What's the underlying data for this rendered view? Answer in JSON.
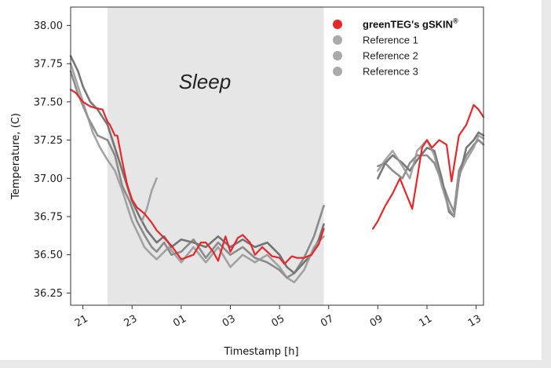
{
  "chart_data": {
    "type": "line",
    "title": "",
    "xlabel": "Timestamp [h]",
    "ylabel": "Temperature, (C)",
    "xlim": [
      20.5,
      37.3
    ],
    "ylim": [
      36.17,
      38.12
    ],
    "x_ticks": [
      {
        "value": 21,
        "label": "21"
      },
      {
        "value": 23,
        "label": "23"
      },
      {
        "value": 25,
        "label": "01"
      },
      {
        "value": 27,
        "label": "03"
      },
      {
        "value": 29,
        "label": "05"
      },
      {
        "value": 31,
        "label": "07"
      },
      {
        "value": 33,
        "label": "09"
      },
      {
        "value": 35,
        "label": "11"
      },
      {
        "value": 37,
        "label": "13"
      }
    ],
    "y_ticks": [
      {
        "value": 36.25,
        "label": "36.25"
      },
      {
        "value": 36.5,
        "label": "36.50"
      },
      {
        "value": 36.75,
        "label": "36.75"
      },
      {
        "value": 37.0,
        "label": "37.00"
      },
      {
        "value": 37.25,
        "label": "37.25"
      },
      {
        "value": 37.5,
        "label": "37.50"
      },
      {
        "value": 37.75,
        "label": "37.75"
      },
      {
        "value": 38.0,
        "label": "38.00"
      }
    ],
    "shaded_region": {
      "x_start": 22.0,
      "x_end": 30.8,
      "label": "Sleep",
      "color": "#e6e6e6"
    },
    "legend": {
      "placement": "top-right",
      "entries": [
        {
          "name": "greenTEG's gSKIN",
          "superscript": "®",
          "color": "#e8272b"
        },
        {
          "name": "Reference 1",
          "color": "#aaaaaa"
        },
        {
          "name": "Reference 2",
          "color": "#aaaaaa"
        },
        {
          "name": "Reference 3",
          "color": "#aaaaaa"
        }
      ]
    },
    "series": [
      {
        "name": "greenTEG's gSKIN",
        "color": "#e8272b",
        "segments": [
          {
            "x": [
              20.5,
              20.7,
              21.0,
              21.3,
              21.5,
              21.8,
              21.9,
              22.0,
              22.1,
              22.3,
              22.4,
              22.6,
              22.8,
              23.0,
              23.2,
              23.5,
              23.8,
              24.0,
              24.3,
              24.6,
              25.0,
              25.5,
              25.8,
              26.0,
              26.3,
              26.5,
              26.8,
              27.0,
              27.3,
              27.5,
              27.8,
              28.0,
              28.3,
              28.5,
              28.7,
              29.0,
              29.2,
              29.5,
              29.7,
              30.0,
              30.3,
              30.6,
              30.8
            ],
            "y": [
              37.58,
              37.56,
              37.5,
              37.47,
              37.46,
              37.45,
              37.41,
              37.37,
              37.35,
              37.28,
              37.28,
              37.11,
              36.96,
              36.86,
              36.81,
              36.77,
              36.71,
              36.66,
              36.61,
              36.56,
              36.47,
              36.5,
              36.58,
              36.58,
              36.52,
              36.46,
              36.62,
              36.52,
              36.61,
              36.63,
              36.58,
              36.5,
              36.55,
              36.52,
              36.49,
              36.48,
              36.44,
              36.49,
              36.48,
              36.48,
              36.5,
              36.57,
              36.67
            ]
          },
          {
            "x": [
              32.8,
              33.0,
              33.3,
              33.6,
              33.9,
              34.2,
              34.4,
              34.6,
              34.8,
              35.0,
              35.2,
              35.5,
              35.8,
              36.0,
              36.3,
              36.6,
              36.9,
              37.1,
              37.3
            ],
            "y": [
              36.67,
              36.72,
              36.82,
              36.9,
              37.0,
              36.88,
              36.8,
              37.0,
              37.2,
              37.25,
              37.2,
              37.25,
              37.22,
              36.98,
              37.28,
              37.35,
              37.48,
              37.45,
              37.4
            ]
          }
        ]
      },
      {
        "name": "Reference 1",
        "color": "#5f5f5f",
        "segments": [
          {
            "x": [
              20.5,
              20.8,
              21.0,
              21.3,
              21.6,
              22.0,
              22.3,
              22.6,
              22.8,
              23.0,
              23.3,
              23.6,
              24.0,
              24.3,
              24.6,
              25.0,
              25.5,
              26.0,
              26.5,
              27.0,
              27.5,
              28.0,
              28.5,
              29.0,
              29.3,
              29.6,
              30.0,
              30.3,
              30.6,
              30.8
            ],
            "y": [
              37.8,
              37.7,
              37.6,
              37.5,
              37.45,
              37.35,
              37.2,
              37.05,
              36.95,
              36.85,
              36.75,
              36.66,
              36.58,
              36.62,
              36.55,
              36.6,
              36.58,
              36.55,
              36.62,
              36.55,
              36.6,
              36.55,
              36.58,
              36.5,
              36.42,
              36.38,
              36.45,
              36.5,
              36.6,
              36.7
            ]
          },
          {
            "x": [
              33.0,
              33.3,
              33.6,
              34.0,
              34.3,
              34.6,
              35.0,
              35.3,
              35.6,
              35.9,
              36.1,
              36.3,
              36.6,
              36.9,
              37.1,
              37.3
            ],
            "y": [
              37.0,
              37.1,
              37.15,
              37.1,
              37.05,
              37.12,
              37.2,
              37.18,
              37.0,
              36.78,
              36.75,
              37.0,
              37.2,
              37.25,
              37.3,
              37.28
            ]
          }
        ]
      },
      {
        "name": "Reference 2",
        "color": "#7a7a7a",
        "segments": [
          {
            "x": [
              20.5,
              20.8,
              21.2,
              21.6,
              22.0,
              22.3,
              22.6,
              22.9,
              23.2,
              23.5,
              23.8,
              24.0,
              24.3,
              24.6,
              25.0,
              25.5,
              26.0,
              26.5,
              27.0,
              27.5,
              28.0,
              28.5,
              29.0,
              29.3,
              29.6,
              30.0,
              30.4,
              30.8
            ],
            "y": [
              37.7,
              37.55,
              37.4,
              37.28,
              37.25,
              37.15,
              36.95,
              36.85,
              36.72,
              36.63,
              36.55,
              36.52,
              36.58,
              36.5,
              36.52,
              36.6,
              36.48,
              36.58,
              36.5,
              36.55,
              36.48,
              36.45,
              36.4,
              36.35,
              36.38,
              36.48,
              36.62,
              36.82
            ]
          },
          {
            "x": [
              33.0,
              33.3,
              33.6,
              34.0,
              34.3,
              34.6,
              35.0,
              35.3,
              35.6,
              35.9,
              36.1,
              36.3,
              36.6,
              36.9,
              37.1,
              37.3
            ],
            "y": [
              37.08,
              37.1,
              37.05,
              37.0,
              37.1,
              37.15,
              37.15,
              37.1,
              36.98,
              36.85,
              36.78,
              37.05,
              37.15,
              37.22,
              37.25,
              37.22
            ]
          }
        ]
      },
      {
        "name": "Reference 3",
        "color": "#959595",
        "segments": [
          {
            "x": [
              20.5,
              20.8,
              21.1,
              21.4,
              21.7,
              22.0,
              22.3,
              22.6,
              22.8,
              23.0,
              23.3,
              23.5,
              23.8,
              24.0,
              24.5,
              25.0,
              25.5,
              26.0,
              26.5,
              27.0,
              27.5,
              28.0,
              28.5,
              29.0,
              29.3,
              29.6,
              30.0,
              30.4,
              30.8
            ],
            "y": [
              37.75,
              37.6,
              37.45,
              37.3,
              37.2,
              37.12,
              37.05,
              36.92,
              36.82,
              36.72,
              36.62,
              36.55,
              36.5,
              36.47,
              36.55,
              36.45,
              36.55,
              36.45,
              36.55,
              36.42,
              36.5,
              36.45,
              36.5,
              36.42,
              36.35,
              36.32,
              36.4,
              36.55,
              36.62
            ]
          },
          {
            "x": [
              23.4,
              23.6,
              23.8,
              24.0
            ],
            "y": [
              36.72,
              36.8,
              36.92,
              37.0
            ]
          },
          {
            "x": [
              33.0,
              33.3,
              33.6,
              34.0,
              34.3,
              34.6,
              35.0,
              35.3,
              35.6,
              35.9,
              36.1,
              36.3,
              36.6,
              36.9,
              37.1,
              37.3
            ],
            "y": [
              37.05,
              37.12,
              37.18,
              37.08,
              37.0,
              37.18,
              37.25,
              37.15,
              36.95,
              36.8,
              36.75,
              37.02,
              37.12,
              37.2,
              37.28,
              37.26
            ]
          }
        ]
      }
    ]
  }
}
